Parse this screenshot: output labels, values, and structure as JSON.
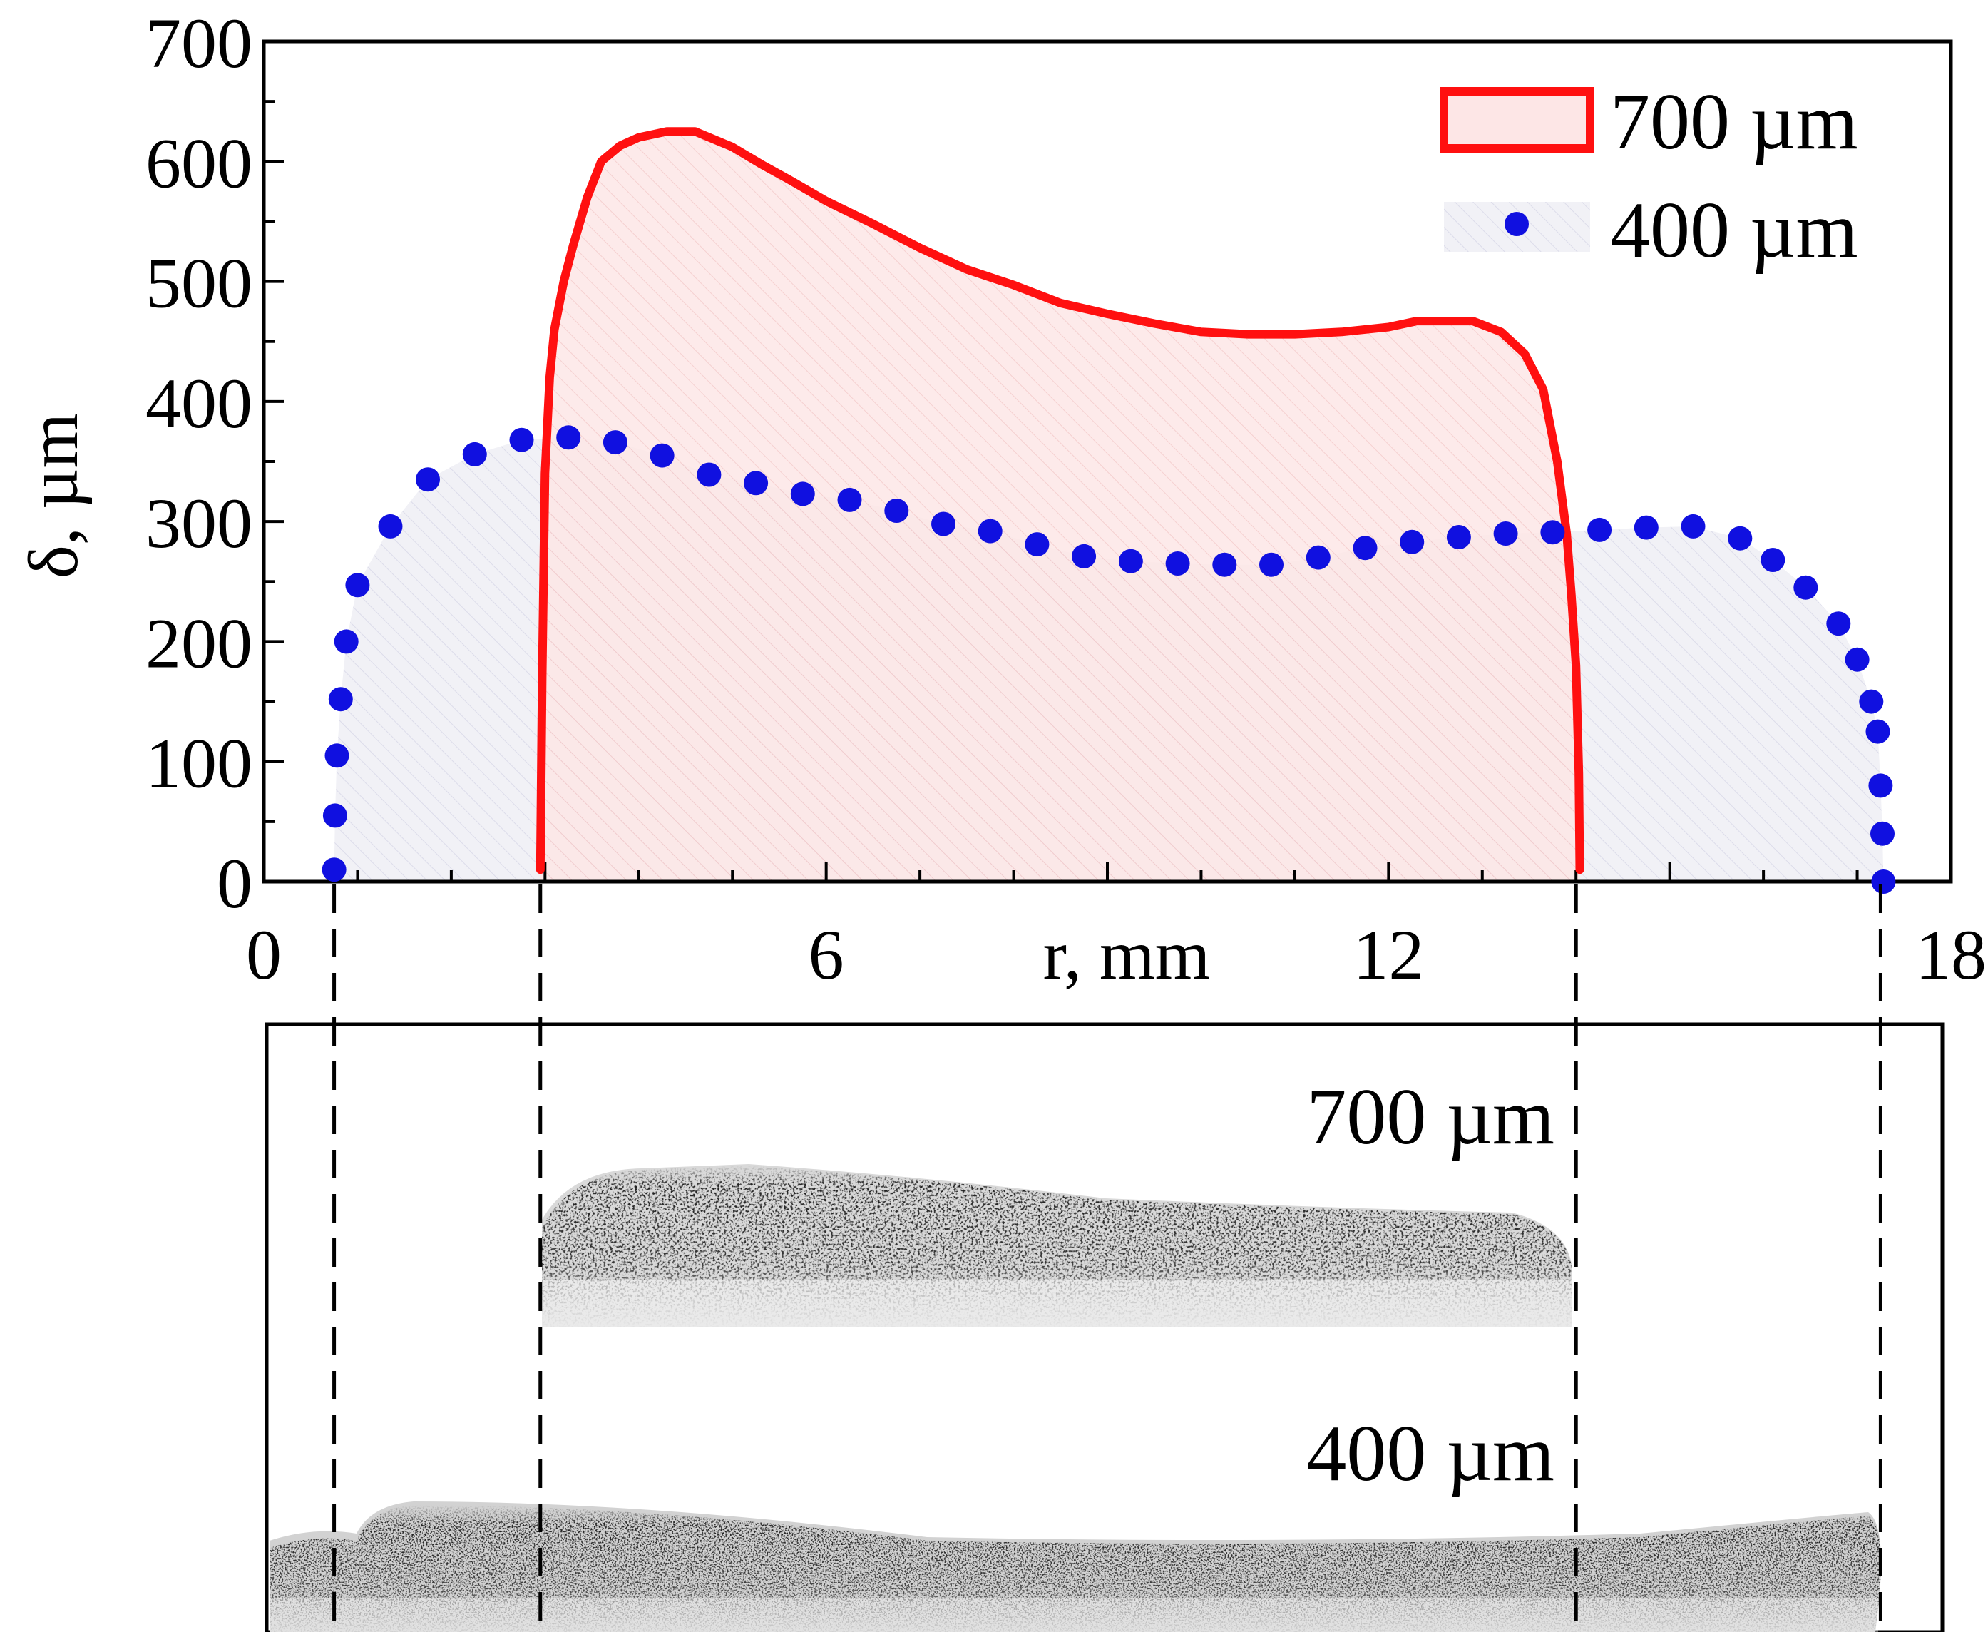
{
  "chart_data": {
    "type": "area",
    "title": "",
    "xlabel": "r, mm",
    "ylabel": "δ, µm",
    "xlim": [
      0,
      18
    ],
    "ylim": [
      0,
      700
    ],
    "x_ticks": [
      0,
      6,
      12,
      18
    ],
    "y_ticks": [
      0,
      100,
      200,
      300,
      400,
      500,
      600,
      700
    ],
    "x_minor_step": 1,
    "y_minor_step": 50,
    "legend_position": "top-right",
    "grid": false,
    "guide_lines_r_mm": [
      0.75,
      2.95,
      14.0,
      17.25
    ],
    "series": [
      {
        "name": "700 µm",
        "style": "line-filled",
        "color": "#ff1010",
        "fill": "#fde6e6",
        "x": [
          2.95,
          2.97,
          3.0,
          3.05,
          3.1,
          3.2,
          3.3,
          3.45,
          3.6,
          3.8,
          4.0,
          4.3,
          4.6,
          5.0,
          5.3,
          5.6,
          6.0,
          6.5,
          7.0,
          7.5,
          8.0,
          8.5,
          9.0,
          9.5,
          10.0,
          10.5,
          11.0,
          11.5,
          12.0,
          12.3,
          12.6,
          12.9,
          13.2,
          13.45,
          13.65,
          13.8,
          13.9,
          13.95,
          14.0,
          14.03,
          14.04
        ],
        "y": [
          10,
          170,
          340,
          420,
          460,
          500,
          530,
          570,
          600,
          613,
          620,
          625,
          625,
          612,
          598,
          585,
          567,
          548,
          528,
          510,
          497,
          482,
          473,
          465,
          458,
          456,
          456,
          458,
          462,
          467,
          467,
          467,
          458,
          440,
          410,
          350,
          290,
          240,
          180,
          90,
          10
        ]
      },
      {
        "name": "400 µm",
        "style": "dots",
        "color": "#1010e0",
        "fill": "#eeeff6",
        "x": [
          0.75,
          0.76,
          0.78,
          0.82,
          0.88,
          1.0,
          1.35,
          1.75,
          2.25,
          2.75,
          3.25,
          3.75,
          4.25,
          4.75,
          5.25,
          5.75,
          6.25,
          6.75,
          7.25,
          7.75,
          8.25,
          8.75,
          9.25,
          9.75,
          10.25,
          10.75,
          11.25,
          11.75,
          12.25,
          12.75,
          13.25,
          13.75,
          14.25,
          14.75,
          15.25,
          15.75,
          16.1,
          16.45,
          16.8,
          17.0,
          17.15,
          17.22,
          17.25,
          17.27,
          17.28
        ],
        "y": [
          10,
          55,
          105,
          152,
          200,
          247,
          296,
          335,
          356,
          368,
          370,
          366,
          355,
          339,
          332,
          323,
          318,
          309,
          298,
          292,
          281,
          271,
          267,
          265,
          264,
          264,
          270,
          278,
          283,
          287,
          290,
          291,
          293,
          295,
          296,
          286,
          268,
          245,
          215,
          185,
          150,
          125,
          80,
          40,
          0
        ]
      }
    ],
    "legend": [
      {
        "label": "700 µm",
        "marker": "box"
      },
      {
        "label": "400 µm",
        "marker": "dot"
      }
    ],
    "photo_panel": {
      "labels": [
        "700 µm",
        "400 µm"
      ]
    }
  }
}
